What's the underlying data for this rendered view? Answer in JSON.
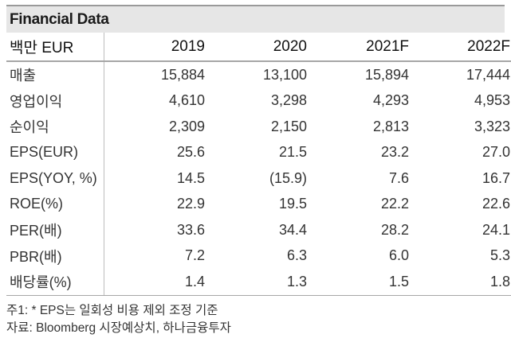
{
  "title": "Financial Data",
  "unit_label": "백만 EUR",
  "columns": [
    "2019",
    "2020",
    "2021F",
    "2022F"
  ],
  "rows": [
    {
      "label": "매출",
      "values": [
        "15,884",
        "13,100",
        "15,894",
        "17,444"
      ]
    },
    {
      "label": "영업이익",
      "values": [
        "4,610",
        "3,298",
        "4,293",
        "4,953"
      ]
    },
    {
      "label": "순이익",
      "values": [
        "2,309",
        "2,150",
        "2,813",
        "3,323"
      ]
    },
    {
      "label": "EPS(EUR)",
      "values": [
        "25.6",
        "21.5",
        "23.2",
        "27.0"
      ]
    },
    {
      "label": "EPS(YOY, %)",
      "values": [
        "14.5",
        "(15.9)",
        "7.6",
        "16.7"
      ]
    },
    {
      "label": "ROE(%)",
      "values": [
        "22.9",
        "19.5",
        "22.2",
        "22.6"
      ]
    },
    {
      "label": "PER(배)",
      "values": [
        "33.6",
        "34.4",
        "28.2",
        "24.1"
      ]
    },
    {
      "label": "PBR(배)",
      "values": [
        "7.2",
        "6.3",
        "6.0",
        "5.3"
      ]
    },
    {
      "label": "배당률(%)",
      "values": [
        "1.4",
        "1.3",
        "1.5",
        "1.8"
      ]
    }
  ],
  "notes": [
    "주1: * EPS는 일회성 비용 제외 조정 기준",
    "자료: Bloomberg 시장예상치, 하나금융투자"
  ]
}
